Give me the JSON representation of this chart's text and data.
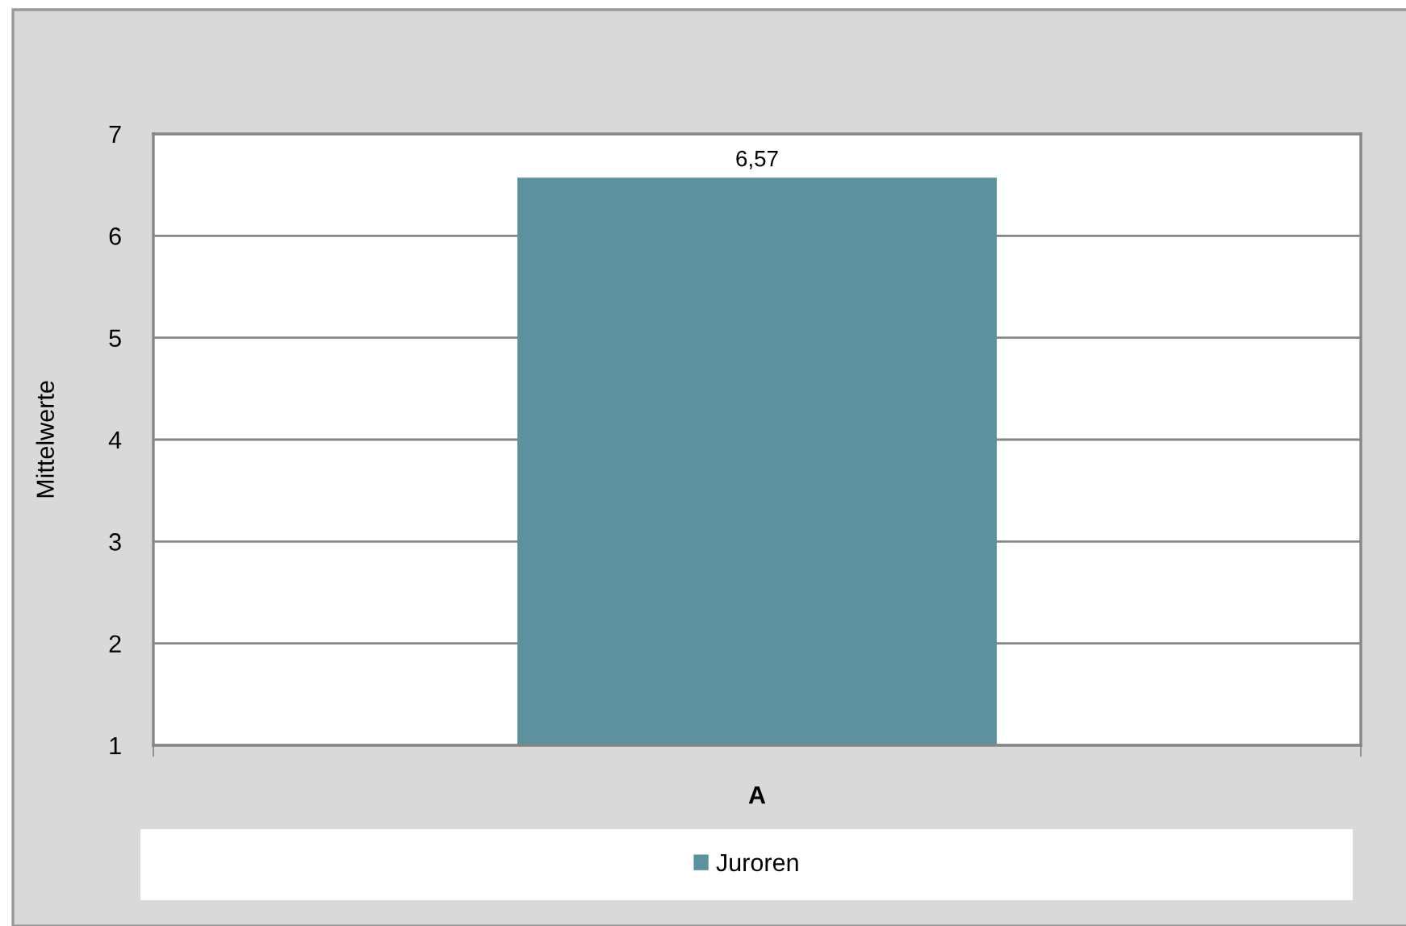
{
  "chart_data": {
    "type": "bar",
    "ylabel": "Mittelwerte",
    "categories": [
      "A"
    ],
    "series": [
      {
        "name": "Juroren",
        "color": "#5b929e",
        "values": [
          6.57
        ],
        "value_labels": [
          "6,57"
        ]
      }
    ],
    "ylim": [
      1,
      7
    ],
    "yticks": [
      1,
      2,
      3,
      4,
      5,
      6,
      7
    ],
    "grid": "y",
    "legend": "bottom"
  }
}
